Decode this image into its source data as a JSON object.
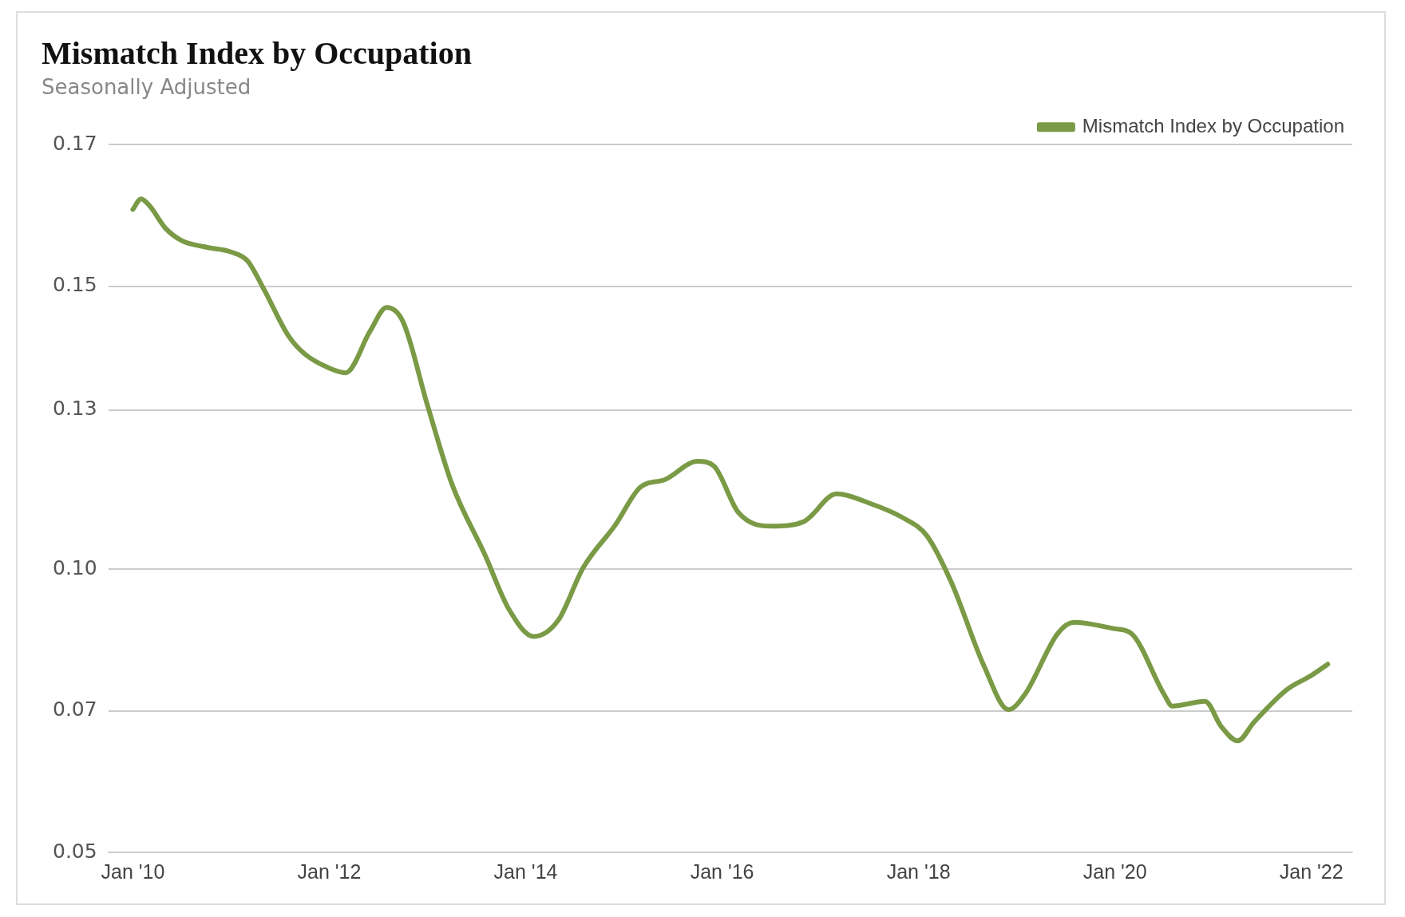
{
  "chart_data": {
    "type": "line",
    "title": "Mismatch Index by Occupation",
    "subtitle": "Seasonally Adjusted",
    "x": [
      "2010-01",
      "2010-02",
      "2010-03",
      "2010-05",
      "2010-07",
      "2010-10",
      "2011-01",
      "2011-03",
      "2011-05",
      "2011-08",
      "2011-10",
      "2012-01",
      "2012-03",
      "2012-06",
      "2012-08",
      "2012-10",
      "2013-01",
      "2013-04",
      "2013-08",
      "2013-11",
      "2014-02",
      "2014-05",
      "2014-08",
      "2014-12",
      "2015-03",
      "2015-06",
      "2015-10",
      "2015-12",
      "2016-03",
      "2016-07",
      "2016-11",
      "2017-03",
      "2017-07",
      "2017-11",
      "2018-02",
      "2018-05",
      "2018-09",
      "2018-12",
      "2019-02",
      "2019-06",
      "2019-08",
      "2020-01",
      "2020-03",
      "2020-07",
      "2020-08",
      "2020-12",
      "2021-02",
      "2021-04",
      "2021-06",
      "2021-10",
      "2022-01",
      "2022-03"
    ],
    "series": [
      {
        "name": "Mismatch Index by Occupation",
        "color": "#7a9a45",
        "values": [
          0.159,
          0.1608,
          0.1597,
          0.1558,
          0.1537,
          0.1526,
          0.1518,
          0.1503,
          0.1455,
          0.1376,
          0.1345,
          0.1321,
          0.1313,
          0.1384,
          0.1424,
          0.14,
          0.1258,
          0.1124,
          0.1005,
          0.0911,
          0.0866,
          0.0894,
          0.0982,
          0.1056,
          0.1119,
          0.1132,
          0.1163,
          0.1155,
          0.1076,
          0.1053,
          0.1061,
          0.1108,
          0.1092,
          0.1068,
          0.1037,
          0.0958,
          0.0816,
          0.0742,
          0.0768,
          0.0871,
          0.089,
          0.0879,
          0.0871,
          0.0768,
          0.0748,
          0.0756,
          0.0713,
          0.0689,
          0.0721,
          0.0776,
          0.08,
          0.0819
        ]
      }
    ],
    "xlim": [
      "2009-10",
      "2022-06"
    ],
    "xticks": [
      {
        "value": "2010-01",
        "label": "Jan '10"
      },
      {
        "value": "2012-01",
        "label": "Jan '12"
      },
      {
        "value": "2014-01",
        "label": "Jan '14"
      },
      {
        "value": "2016-01",
        "label": "Jan '16"
      },
      {
        "value": "2018-01",
        "label": "Jan '18"
      },
      {
        "value": "2020-01",
        "label": "Jan '20"
      },
      {
        "value": "2022-01",
        "label": "Jan '22"
      }
    ],
    "ylim": [
      0.05,
      0.17
    ],
    "yticks": [
      {
        "value": 0.05,
        "label": "0.05"
      },
      {
        "value": 0.074,
        "label": "0.07"
      },
      {
        "value": 0.098,
        "label": "0.10"
      },
      {
        "value": 0.125,
        "label": "0.13"
      },
      {
        "value": 0.146,
        "label": "0.15"
      },
      {
        "value": 0.17,
        "label": "0.17"
      }
    ],
    "grid": "y",
    "legend": "top right",
    "marker": "none",
    "line_style": "solid"
  }
}
